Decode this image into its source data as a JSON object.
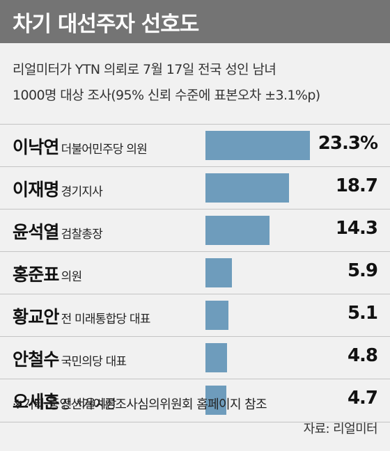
{
  "header": {
    "title": "차기 대선주자 선호도",
    "subtitle_line1": "리얼미터가 YTN 의뢰로 7월 17일 전국 성인 남녀",
    "subtitle_line2": "1000명 대상 조사(95% 신뢰 수준에 표본오차 ±3.1%p)"
  },
  "footer": {
    "note": "※기타 중앙선거여론조사심의위원회 홈페이지 참조",
    "source": "자료: 리얼미터"
  },
  "colors": {
    "title_bg": "#747474",
    "bar": "#6e9cbc",
    "background": "#f1f1f1"
  },
  "chart_data": {
    "type": "bar",
    "orientation": "horizontal",
    "title": "차기 대선주자 선호도",
    "categories": [
      "이낙연",
      "이재명",
      "윤석열",
      "홍준표",
      "황교안",
      "안철수",
      "오세훈"
    ],
    "roles": [
      "더불어민주당 의원",
      "경기지사",
      "검찰총장",
      "의원",
      "전 미래통합당 대표",
      "국민의당 대표",
      "전 서울시장"
    ],
    "values": [
      23.3,
      18.7,
      14.3,
      5.9,
      5.1,
      4.8,
      4.7
    ],
    "value_labels": [
      "23.3%",
      "18.7",
      "14.3",
      "5.9",
      "5.1",
      "4.8",
      "4.7"
    ],
    "xlim": [
      0,
      23.3
    ],
    "grid": false,
    "legend": "none"
  }
}
